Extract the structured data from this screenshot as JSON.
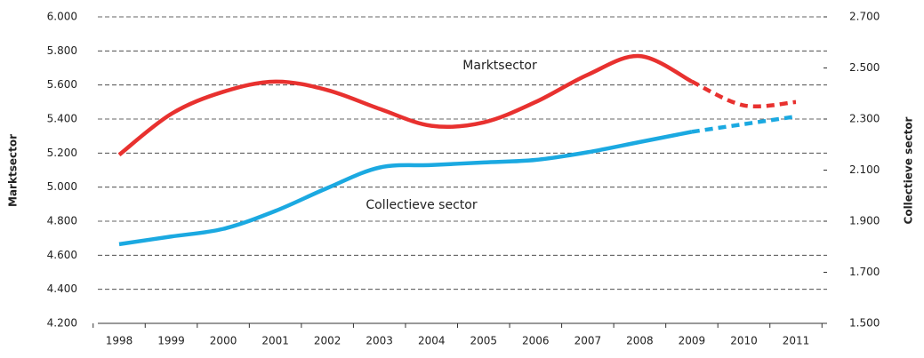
{
  "chart_data": {
    "type": "line",
    "ylabel": "Marktsector",
    "y2label": "Collectieve sector",
    "categories": [
      "1998",
      "1999",
      "2000",
      "2001",
      "2002",
      "2003",
      "2004",
      "2005",
      "2006",
      "2007",
      "2008",
      "2009",
      "2010",
      "2011"
    ],
    "series": [
      {
        "name": "Marktsector",
        "color": "#e8312f",
        "values": [
          5190,
          5430,
          5560,
          5620,
          5570,
          5460,
          5360,
          5380,
          5500,
          5660,
          5770,
          5620,
          5480,
          5500
        ]
      },
      {
        "name": "Collectieve sector",
        "color": "#1ba9e1",
        "axis": "y2",
        "values": [
          1810,
          1840,
          1870,
          1940,
          2030,
          2110,
          2120,
          2130,
          2140,
          2170,
          2210,
          2250,
          2280,
          2310
        ]
      }
    ],
    "dashed_from": 11,
    "ylim": [
      4200,
      6000
    ],
    "yticks": [
      {
        "value": 4200,
        "label": "4.200"
      },
      {
        "value": 4400,
        "label": "4.400"
      },
      {
        "value": 4600,
        "label": "4.600"
      },
      {
        "value": 4800,
        "label": "4.800"
      },
      {
        "value": 5000,
        "label": "5.000"
      },
      {
        "value": 5200,
        "label": "5.200"
      },
      {
        "value": 5400,
        "label": "5.400"
      },
      {
        "value": 5600,
        "label": "5.600"
      },
      {
        "value": 5800,
        "label": "5.800"
      },
      {
        "value": 6000,
        "label": "6.000"
      }
    ],
    "y2lim": [
      1500,
      2700
    ],
    "y2ticks": [
      {
        "value": 1500,
        "label": "1.500"
      },
      {
        "value": 1700,
        "label": "1.700"
      },
      {
        "value": 1900,
        "label": "1.900"
      },
      {
        "value": 2100,
        "label": "2.100"
      },
      {
        "value": 2300,
        "label": "2.300"
      },
      {
        "value": 2500,
        "label": "2.500"
      },
      {
        "value": 2700,
        "label": "2.700"
      }
    ],
    "grid": true
  }
}
